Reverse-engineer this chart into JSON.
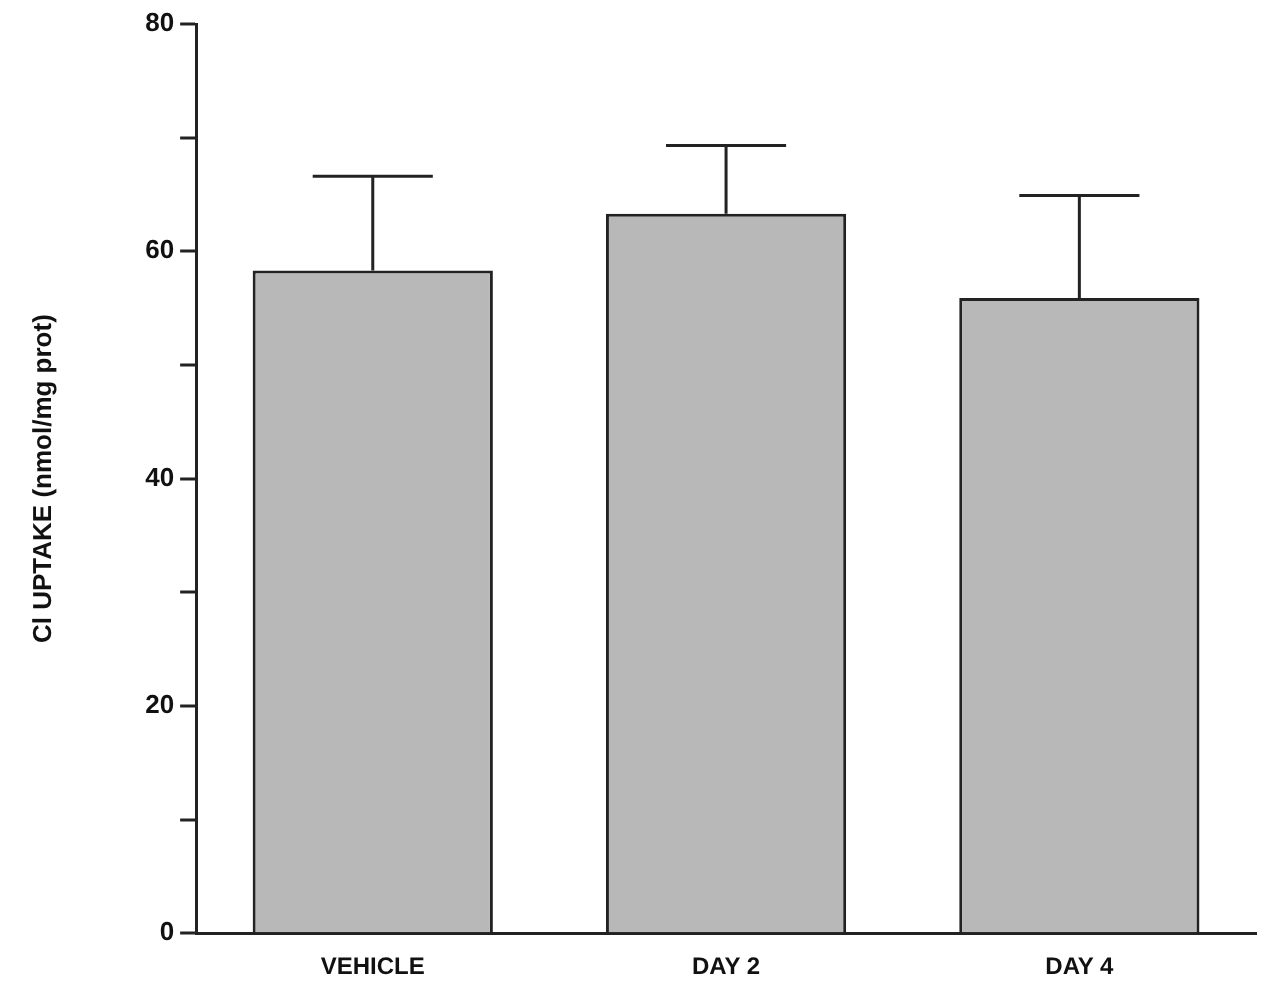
{
  "chart_data": {
    "type": "bar",
    "ylabel": "Cl UPTAKE (nmol/mg prot)",
    "categories": [
      "VEHICLE",
      "DAY 2",
      "DAY 4"
    ],
    "values": [
      58.3,
      63.3,
      55.9
    ],
    "errors": [
      [
        58.3,
        66.6
      ],
      [
        63.3,
        69.3
      ],
      [
        55.9,
        64.9
      ]
    ],
    "color": "#b8b8b8",
    "ylim": [
      0,
      80
    ],
    "yticks": [
      0,
      {
        "value": 10,
        "label": null
      },
      20,
      {
        "value": 30,
        "label": null
      },
      40,
      {
        "value": 50,
        "label": null
      },
      60,
      {
        "value": 70,
        "label": null
      },
      80
    ],
    "grid": false
  }
}
